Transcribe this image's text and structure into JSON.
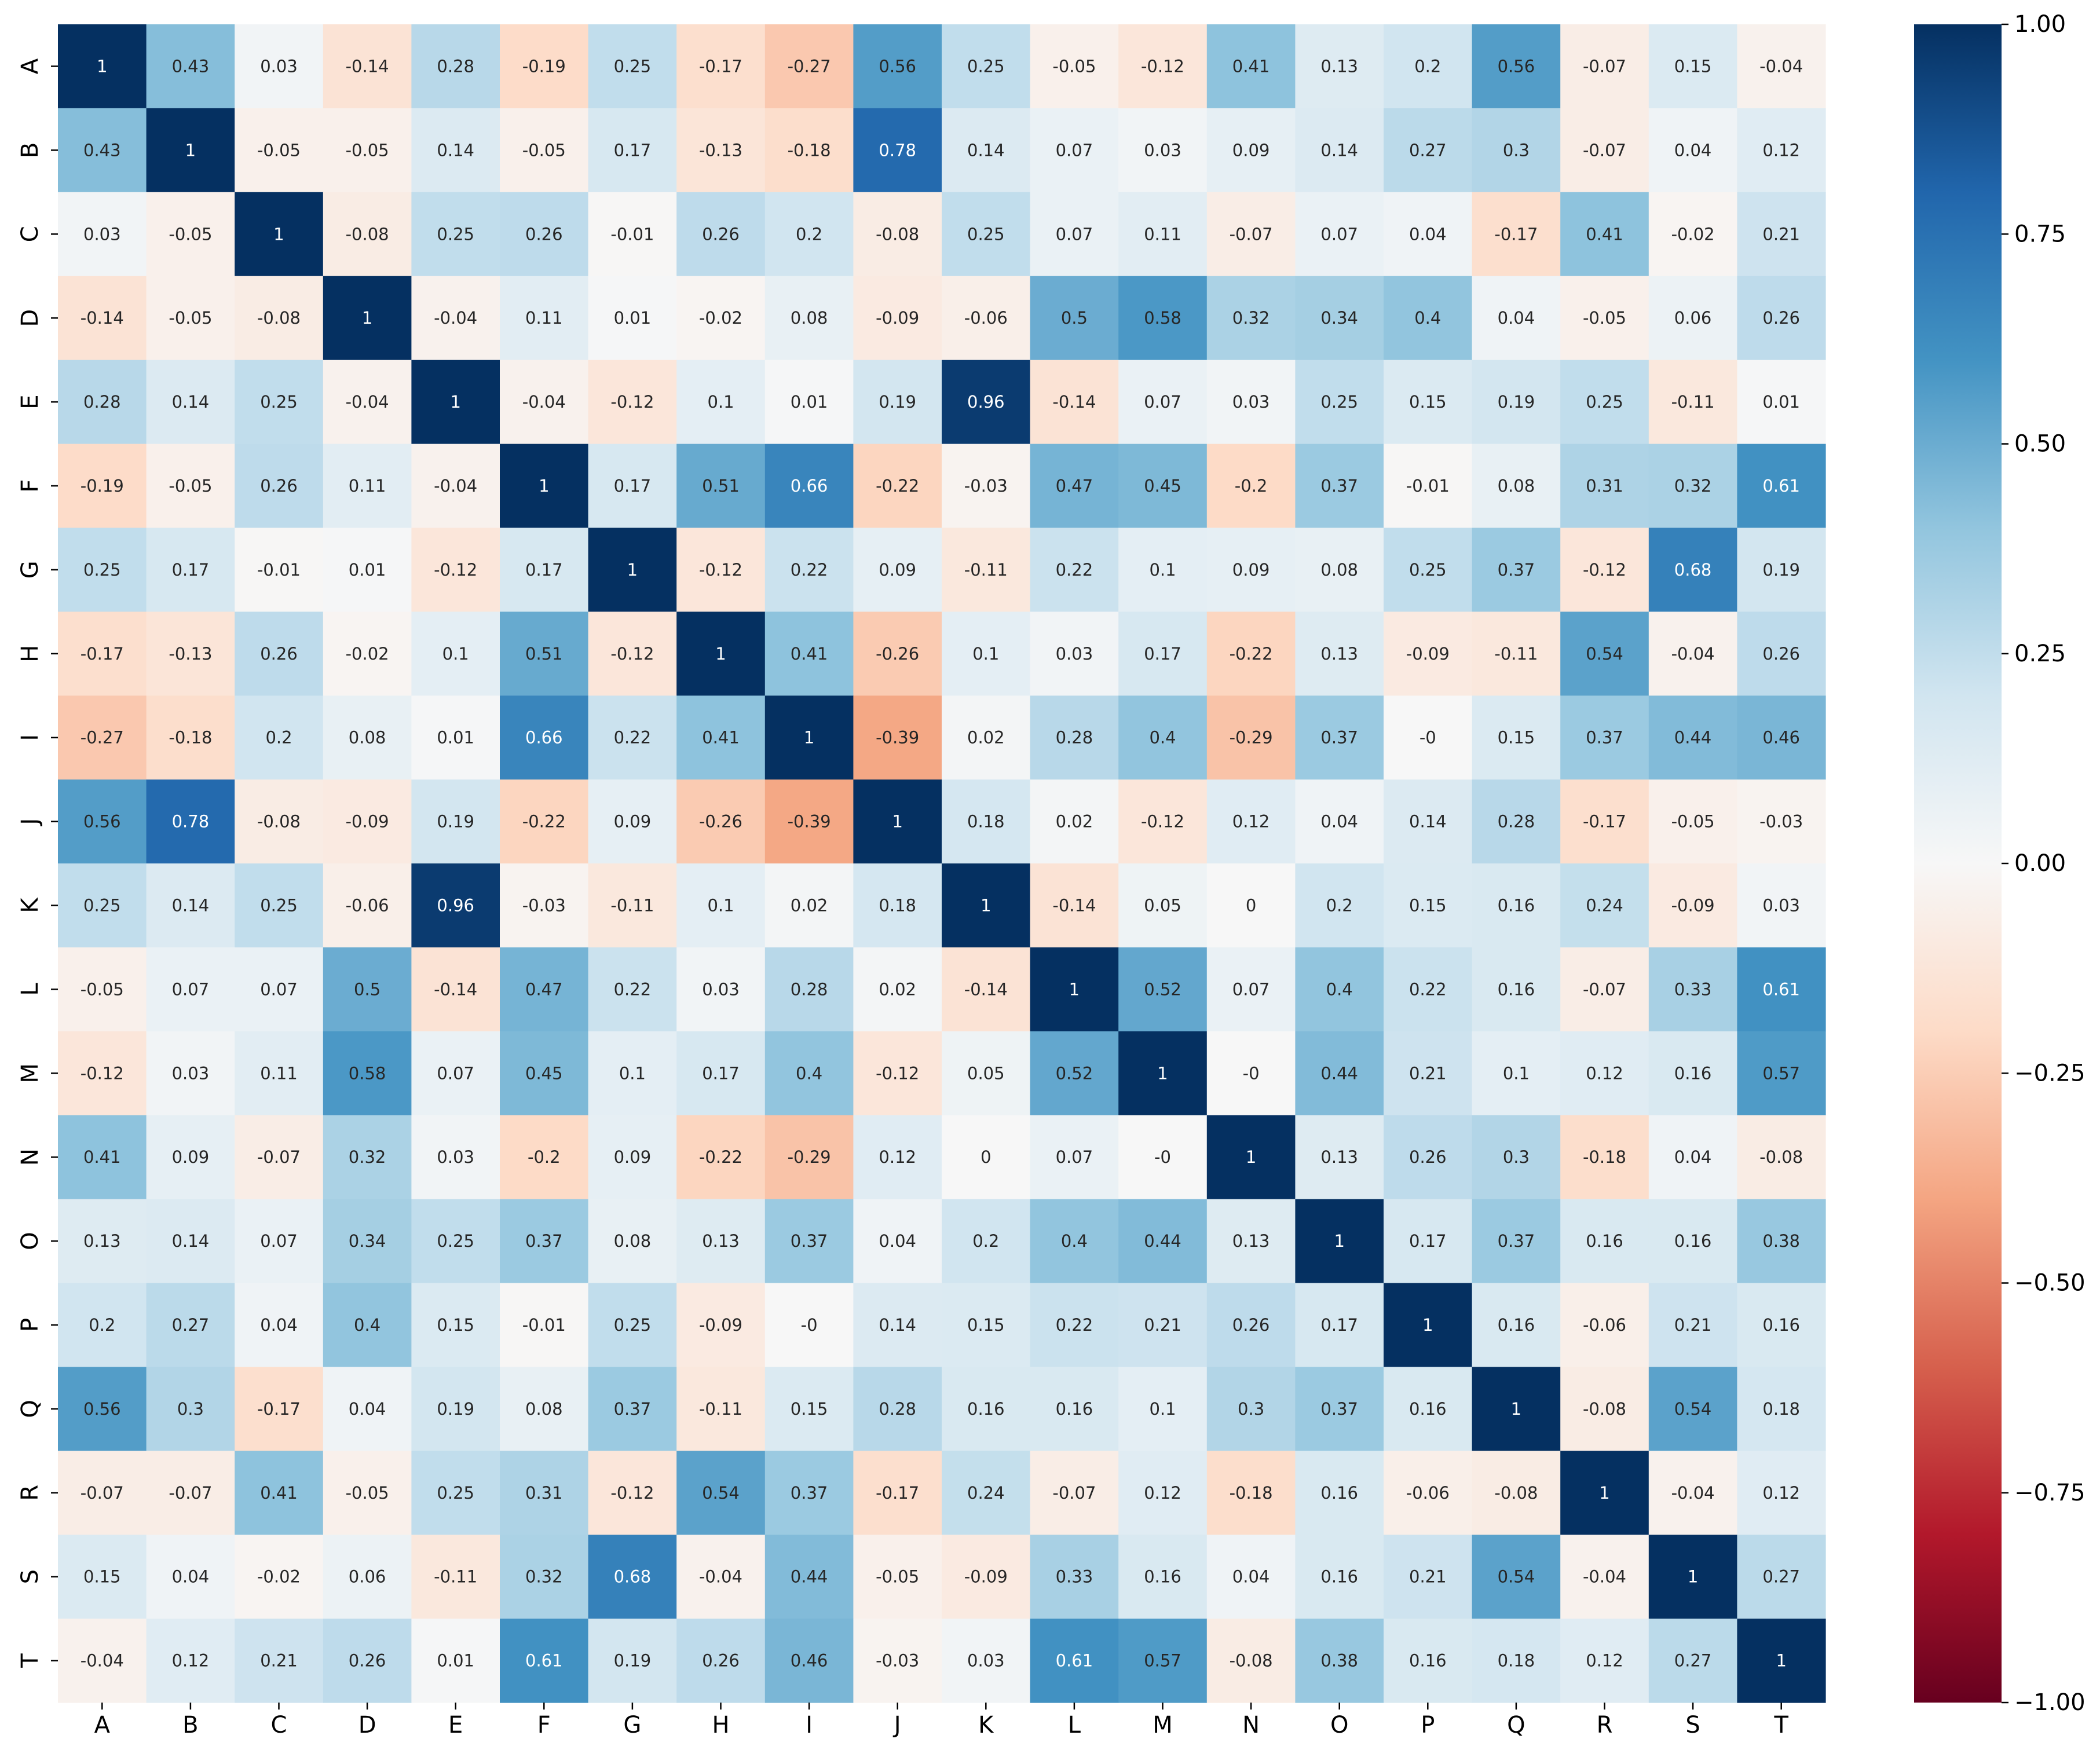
{
  "chart_data": {
    "type": "heatmap",
    "title": "",
    "xlabel": "",
    "ylabel": "",
    "x_categories": [
      "A",
      "B",
      "C",
      "D",
      "E",
      "F",
      "G",
      "H",
      "I",
      "J",
      "K",
      "L",
      "M",
      "N",
      "O",
      "P",
      "Q",
      "R",
      "S",
      "T"
    ],
    "y_categories": [
      "A",
      "B",
      "C",
      "D",
      "E",
      "F",
      "G",
      "H",
      "I",
      "J",
      "K",
      "L",
      "M",
      "N",
      "O",
      "P",
      "Q",
      "R",
      "S",
      "T"
    ],
    "values": [
      [
        1,
        0.43,
        0.03,
        -0.14,
        0.28,
        -0.19,
        0.25,
        -0.17,
        -0.27,
        0.56,
        0.25,
        -0.05,
        -0.12,
        0.41,
        0.13,
        0.2,
        0.56,
        -0.07,
        0.15,
        -0.04
      ],
      [
        0.43,
        1,
        -0.05,
        -0.05,
        0.14,
        -0.05,
        0.17,
        -0.13,
        -0.18,
        0.78,
        0.14,
        0.07,
        0.03,
        0.09,
        0.14,
        0.27,
        0.3,
        -0.07,
        0.04,
        0.12
      ],
      [
        0.03,
        -0.05,
        1,
        -0.08,
        0.25,
        0.26,
        -0.01,
        0.26,
        0.2,
        -0.08,
        0.25,
        0.07,
        0.11,
        -0.07,
        0.07,
        0.04,
        -0.17,
        0.41,
        -0.02,
        0.21
      ],
      [
        -0.14,
        -0.05,
        -0.08,
        1,
        -0.04,
        0.11,
        0.01,
        -0.02,
        0.08,
        -0.09,
        -0.06,
        0.5,
        0.58,
        0.32,
        0.34,
        0.4,
        0.04,
        -0.05,
        0.06,
        0.26
      ],
      [
        0.28,
        0.14,
        0.25,
        -0.04,
        1,
        -0.04,
        -0.12,
        0.1,
        0.01,
        0.19,
        0.96,
        -0.14,
        0.07,
        0.03,
        0.25,
        0.15,
        0.19,
        0.25,
        -0.11,
        0.01
      ],
      [
        -0.19,
        -0.05,
        0.26,
        0.11,
        -0.04,
        1,
        0.17,
        0.51,
        0.66,
        -0.22,
        -0.03,
        0.47,
        0.45,
        -0.2,
        0.37,
        -0.01,
        0.08,
        0.31,
        0.32,
        0.61
      ],
      [
        0.25,
        0.17,
        -0.01,
        0.01,
        -0.12,
        0.17,
        1,
        -0.12,
        0.22,
        0.09,
        -0.11,
        0.22,
        0.1,
        0.09,
        0.08,
        0.25,
        0.37,
        -0.12,
        0.68,
        0.19
      ],
      [
        -0.17,
        -0.13,
        0.26,
        -0.02,
        0.1,
        0.51,
        -0.12,
        1,
        0.41,
        -0.26,
        0.1,
        0.03,
        0.17,
        -0.22,
        0.13,
        -0.09,
        -0.11,
        0.54,
        -0.04,
        0.26
      ],
      [
        -0.27,
        -0.18,
        0.2,
        0.08,
        0.01,
        0.66,
        0.22,
        0.41,
        1,
        -0.39,
        0.02,
        0.28,
        0.4,
        -0.29,
        0.37,
        "-0",
        0.15,
        0.37,
        0.44,
        0.46
      ],
      [
        0.56,
        0.78,
        -0.08,
        -0.09,
        0.19,
        -0.22,
        0.09,
        -0.26,
        -0.39,
        1,
        0.18,
        0.02,
        -0.12,
        0.12,
        0.04,
        0.14,
        0.28,
        -0.17,
        -0.05,
        -0.03
      ],
      [
        0.25,
        0.14,
        0.25,
        -0.06,
        0.96,
        -0.03,
        -0.11,
        0.1,
        0.02,
        0.18,
        1,
        -0.14,
        0.05,
        0,
        0.2,
        0.15,
        0.16,
        0.24,
        -0.09,
        0.03
      ],
      [
        -0.05,
        0.07,
        0.07,
        0.5,
        -0.14,
        0.47,
        0.22,
        0.03,
        0.28,
        0.02,
        -0.14,
        1,
        0.52,
        0.07,
        0.4,
        0.22,
        0.16,
        -0.07,
        0.33,
        0.61
      ],
      [
        -0.12,
        0.03,
        0.11,
        0.58,
        0.07,
        0.45,
        0.1,
        0.17,
        0.4,
        -0.12,
        0.05,
        0.52,
        1,
        "-0",
        0.44,
        0.21,
        0.1,
        0.12,
        0.16,
        0.57
      ],
      [
        0.41,
        0.09,
        -0.07,
        0.32,
        0.03,
        -0.2,
        0.09,
        -0.22,
        -0.29,
        0.12,
        0,
        0.07,
        "-0",
        1,
        0.13,
        0.26,
        0.3,
        -0.18,
        0.04,
        -0.08
      ],
      [
        0.13,
        0.14,
        0.07,
        0.34,
        0.25,
        0.37,
        0.08,
        0.13,
        0.37,
        0.04,
        0.2,
        0.4,
        0.44,
        0.13,
        1,
        0.17,
        0.37,
        0.16,
        0.16,
        0.38
      ],
      [
        0.2,
        0.27,
        0.04,
        0.4,
        0.15,
        -0.01,
        0.25,
        -0.09,
        "-0",
        0.14,
        0.15,
        0.22,
        0.21,
        0.26,
        0.17,
        1,
        0.16,
        -0.06,
        0.21,
        0.16
      ],
      [
        0.56,
        0.3,
        -0.17,
        0.04,
        0.19,
        0.08,
        0.37,
        -0.11,
        0.15,
        0.28,
        0.16,
        0.16,
        0.1,
        0.3,
        0.37,
        0.16,
        1,
        -0.08,
        0.54,
        0.18
      ],
      [
        -0.07,
        -0.07,
        0.41,
        -0.05,
        0.25,
        0.31,
        -0.12,
        0.54,
        0.37,
        -0.17,
        0.24,
        -0.07,
        0.12,
        -0.18,
        0.16,
        -0.06,
        -0.08,
        1,
        -0.04,
        0.12
      ],
      [
        0.15,
        0.04,
        -0.02,
        0.06,
        -0.11,
        0.32,
        0.68,
        -0.04,
        0.44,
        -0.05,
        -0.09,
        0.33,
        0.16,
        0.04,
        0.16,
        0.21,
        0.54,
        -0.04,
        1,
        0.27
      ],
      [
        -0.04,
        0.12,
        0.21,
        0.26,
        0.01,
        0.61,
        0.19,
        0.26,
        0.46,
        -0.03,
        0.03,
        0.61,
        0.57,
        -0.08,
        0.38,
        0.16,
        0.18,
        0.12,
        0.27,
        1
      ]
    ],
    "colormap": "RdBu",
    "vmin": -1,
    "vmax": 1,
    "colorbar_ticks": [
      "1.00",
      "0.75",
      "0.50",
      "0.25",
      "0.00",
      "−0.25",
      "−0.50",
      "−0.75",
      "−1.00"
    ],
    "grid": false,
    "legend": "colorbar-right"
  }
}
